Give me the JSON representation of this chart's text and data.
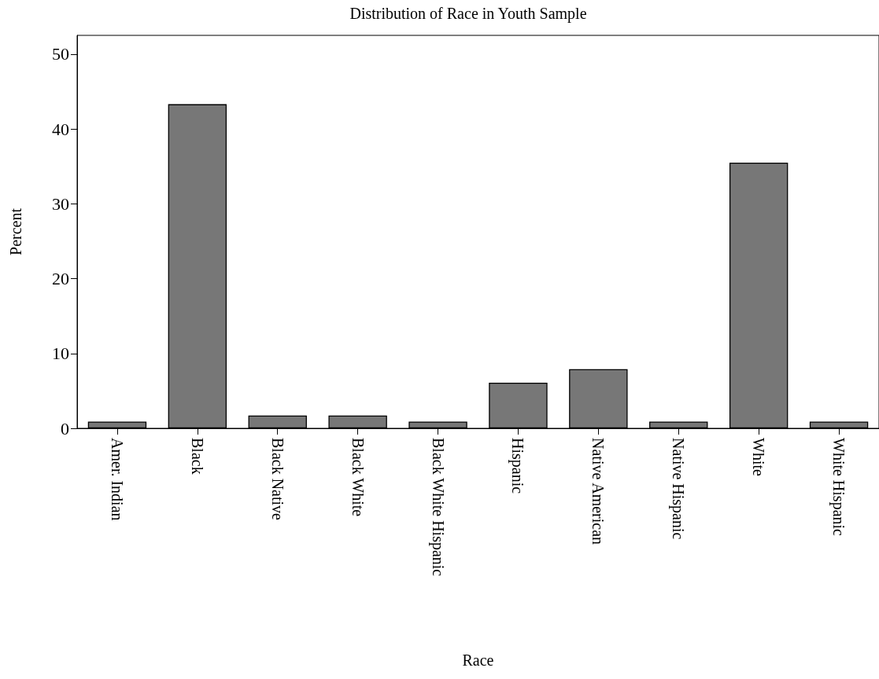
{
  "chart_data": {
    "type": "bar",
    "title": "Distribution of Race in Youth Sample",
    "xlabel": "Race",
    "ylabel": "Percent",
    "categories": [
      "Amer. Indian",
      "Black",
      "Black Native",
      "Black White",
      "Black White Hispanic",
      "Hispanic",
      "Native American",
      "Native Hispanic",
      "White",
      "White Hispanic"
    ],
    "values": [
      0.9,
      43.3,
      1.7,
      1.7,
      0.9,
      6.1,
      7.9,
      0.9,
      35.5,
      0.9
    ],
    "color": "#777777",
    "ylim": [
      0,
      52.5
    ],
    "yticks": [
      0,
      10,
      20,
      30,
      40,
      50
    ],
    "grid": false
  }
}
